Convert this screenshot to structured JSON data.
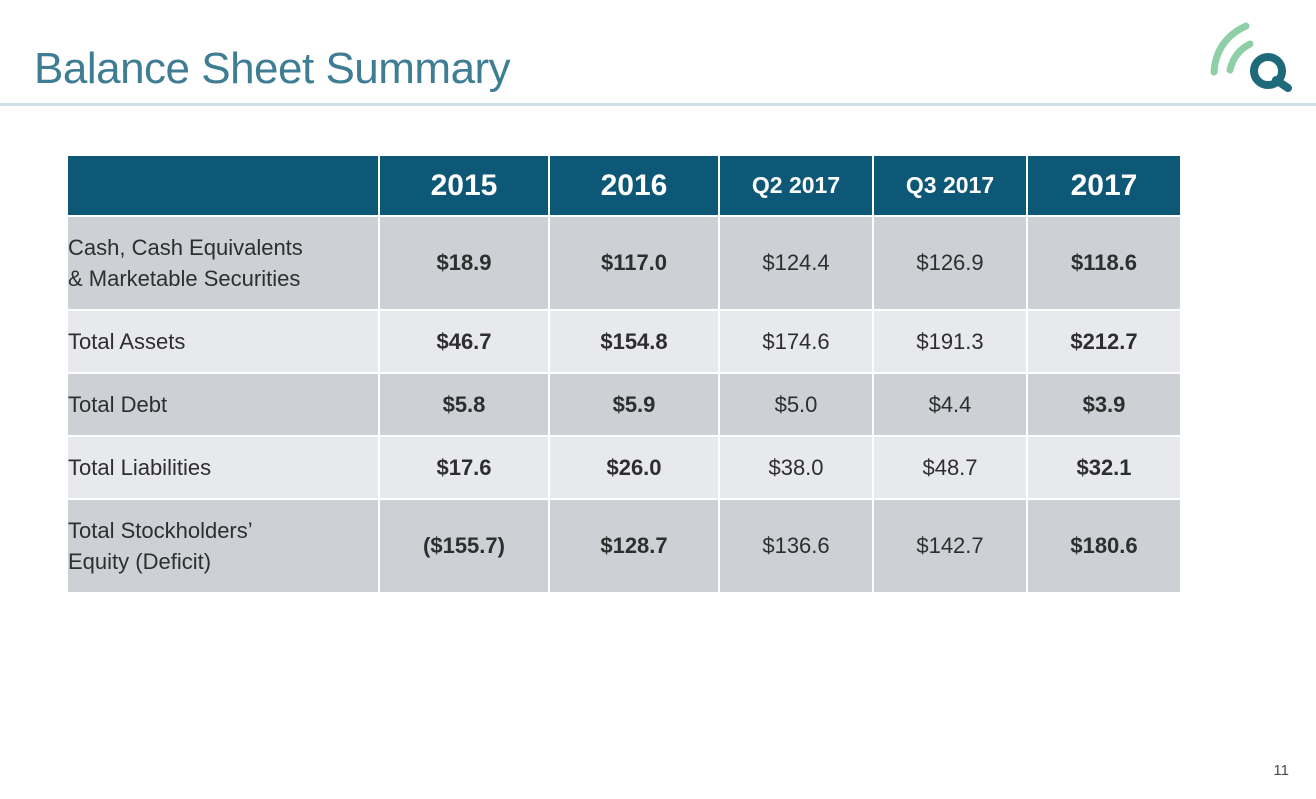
{
  "slide": {
    "title": "Balance Sheet Summary",
    "page_number": "11",
    "accent_color": "#3f7d94",
    "header_color": "#0d5877",
    "logo": {
      "letter": "Q",
      "icon": "signal-arcs-q-logo"
    }
  },
  "table": {
    "columns": [
      "",
      "2015",
      "2016",
      "Q2 2017",
      "Q3 2017",
      "2017"
    ],
    "rows": [
      {
        "label_lines": [
          "Cash, Cash Equivalents",
          "& Marketable Securities"
        ],
        "values": [
          "$18.9",
          "$117.0",
          "$124.4",
          "$126.9",
          "$118.6"
        ]
      },
      {
        "label_lines": [
          "Total Assets"
        ],
        "values": [
          "$46.7",
          "$154.8",
          "$174.6",
          "$191.3",
          "$212.7"
        ]
      },
      {
        "label_lines": [
          "Total Debt"
        ],
        "values": [
          "$5.8",
          "$5.9",
          "$5.0",
          "$4.4",
          "$3.9"
        ]
      },
      {
        "label_lines": [
          "Total Liabilities"
        ],
        "values": [
          "$17.6",
          "$26.0",
          "$38.0",
          "$48.7",
          "$32.1"
        ]
      },
      {
        "label_lines": [
          "Total Stockholders’",
          "Equity (Deficit)"
        ],
        "values": [
          "($155.7)",
          "$128.7",
          "$136.6",
          "$142.7",
          "$180.6"
        ]
      }
    ]
  }
}
